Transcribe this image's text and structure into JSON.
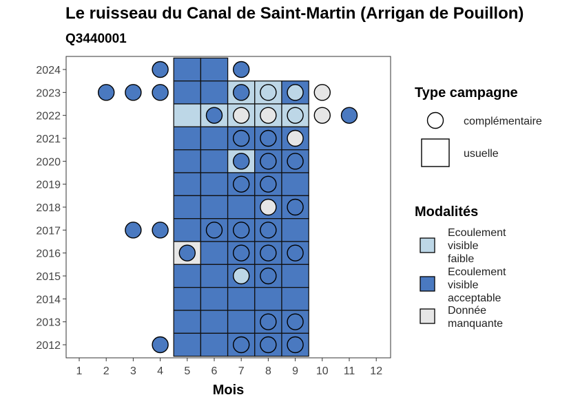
{
  "chart_data": {
    "type": "heatmap",
    "title": "Le ruisseau du Canal de Saint-Martin (Arrigan de Pouillon)",
    "subtitle": "Q3440001",
    "xlabel": "Mois",
    "ylabel": "",
    "x_ticks": [
      1,
      2,
      3,
      4,
      5,
      6,
      7,
      8,
      9,
      10,
      11,
      12
    ],
    "y_ticks": [
      2012,
      2013,
      2014,
      2015,
      2016,
      2017,
      2018,
      2019,
      2020,
      2021,
      2022,
      2023,
      2024
    ],
    "xlim": [
      0.5,
      12.5
    ],
    "ylim": [
      2011.5,
      2024.5
    ],
    "colors": {
      "Ecoulement visible faible": "#bdd7e7",
      "Ecoulement visible acceptable": "#4a79c0",
      "Donnée manquante": "#e6e6e6"
    },
    "usuelle": [
      {
        "year": 2024,
        "month": 5,
        "m": "acc"
      },
      {
        "year": 2024,
        "month": 6,
        "m": "acc"
      },
      {
        "year": 2023,
        "month": 5,
        "m": "acc"
      },
      {
        "year": 2023,
        "month": 6,
        "m": "acc"
      },
      {
        "year": 2023,
        "month": 7,
        "m": "faible"
      },
      {
        "year": 2023,
        "month": 8,
        "m": "faible"
      },
      {
        "year": 2023,
        "month": 9,
        "m": "acc"
      },
      {
        "year": 2022,
        "month": 5,
        "m": "faible"
      },
      {
        "year": 2022,
        "month": 6,
        "m": "faible"
      },
      {
        "year": 2022,
        "month": 7,
        "m": "faible"
      },
      {
        "year": 2022,
        "month": 8,
        "m": "faible"
      },
      {
        "year": 2022,
        "month": 9,
        "m": "faible"
      },
      {
        "year": 2021,
        "month": 5,
        "m": "acc"
      },
      {
        "year": 2021,
        "month": 6,
        "m": "acc"
      },
      {
        "year": 2021,
        "month": 7,
        "m": "acc"
      },
      {
        "year": 2021,
        "month": 8,
        "m": "acc"
      },
      {
        "year": 2021,
        "month": 9,
        "m": "acc"
      },
      {
        "year": 2020,
        "month": 5,
        "m": "acc"
      },
      {
        "year": 2020,
        "month": 6,
        "m": "acc"
      },
      {
        "year": 2020,
        "month": 7,
        "m": "faible"
      },
      {
        "year": 2020,
        "month": 8,
        "m": "acc"
      },
      {
        "year": 2020,
        "month": 9,
        "m": "acc"
      },
      {
        "year": 2019,
        "month": 5,
        "m": "acc"
      },
      {
        "year": 2019,
        "month": 6,
        "m": "acc"
      },
      {
        "year": 2019,
        "month": 7,
        "m": "acc"
      },
      {
        "year": 2019,
        "month": 8,
        "m": "acc"
      },
      {
        "year": 2019,
        "month": 9,
        "m": "acc"
      },
      {
        "year": 2018,
        "month": 5,
        "m": "acc"
      },
      {
        "year": 2018,
        "month": 6,
        "m": "acc"
      },
      {
        "year": 2018,
        "month": 7,
        "m": "acc"
      },
      {
        "year": 2018,
        "month": 8,
        "m": "acc"
      },
      {
        "year": 2018,
        "month": 9,
        "m": "acc"
      },
      {
        "year": 2017,
        "month": 5,
        "m": "acc"
      },
      {
        "year": 2017,
        "month": 6,
        "m": "acc"
      },
      {
        "year": 2017,
        "month": 7,
        "m": "acc"
      },
      {
        "year": 2017,
        "month": 8,
        "m": "acc"
      },
      {
        "year": 2017,
        "month": 9,
        "m": "acc"
      },
      {
        "year": 2016,
        "month": 5,
        "m": "nd"
      },
      {
        "year": 2016,
        "month": 6,
        "m": "acc"
      },
      {
        "year": 2016,
        "month": 7,
        "m": "acc"
      },
      {
        "year": 2016,
        "month": 8,
        "m": "acc"
      },
      {
        "year": 2016,
        "month": 9,
        "m": "acc"
      },
      {
        "year": 2015,
        "month": 5,
        "m": "acc"
      },
      {
        "year": 2015,
        "month": 6,
        "m": "acc"
      },
      {
        "year": 2015,
        "month": 7,
        "m": "acc"
      },
      {
        "year": 2015,
        "month": 8,
        "m": "acc"
      },
      {
        "year": 2015,
        "month": 9,
        "m": "acc"
      },
      {
        "year": 2014,
        "month": 5,
        "m": "acc"
      },
      {
        "year": 2014,
        "month": 6,
        "m": "acc"
      },
      {
        "year": 2014,
        "month": 7,
        "m": "acc"
      },
      {
        "year": 2014,
        "month": 8,
        "m": "acc"
      },
      {
        "year": 2014,
        "month": 9,
        "m": "acc"
      },
      {
        "year": 2013,
        "month": 5,
        "m": "acc"
      },
      {
        "year": 2013,
        "month": 6,
        "m": "acc"
      },
      {
        "year": 2013,
        "month": 7,
        "m": "acc"
      },
      {
        "year": 2013,
        "month": 8,
        "m": "acc"
      },
      {
        "year": 2013,
        "month": 9,
        "m": "acc"
      },
      {
        "year": 2012,
        "month": 5,
        "m": "acc"
      },
      {
        "year": 2012,
        "month": 6,
        "m": "acc"
      },
      {
        "year": 2012,
        "month": 7,
        "m": "acc"
      },
      {
        "year": 2012,
        "month": 8,
        "m": "acc"
      },
      {
        "year": 2012,
        "month": 9,
        "m": "acc"
      }
    ],
    "complementaire": [
      {
        "year": 2024,
        "month": 4,
        "m": "acc"
      },
      {
        "year": 2024,
        "month": 7,
        "m": "acc"
      },
      {
        "year": 2023,
        "month": 2,
        "m": "acc"
      },
      {
        "year": 2023,
        "month": 3,
        "m": "acc"
      },
      {
        "year": 2023,
        "month": 4,
        "m": "acc"
      },
      {
        "year": 2023,
        "month": 7,
        "m": "acc"
      },
      {
        "year": 2023,
        "month": 8,
        "m": "faible"
      },
      {
        "year": 2023,
        "month": 9,
        "m": "faible"
      },
      {
        "year": 2023,
        "month": 10,
        "m": "nd"
      },
      {
        "year": 2022,
        "month": 6,
        "m": "acc"
      },
      {
        "year": 2022,
        "month": 7,
        "m": "nd"
      },
      {
        "year": 2022,
        "month": 8,
        "m": "nd"
      },
      {
        "year": 2022,
        "month": 9,
        "m": "faible"
      },
      {
        "year": 2022,
        "month": 10,
        "m": "nd"
      },
      {
        "year": 2022,
        "month": 11,
        "m": "acc"
      },
      {
        "year": 2021,
        "month": 7,
        "m": "acc"
      },
      {
        "year": 2021,
        "month": 8,
        "m": "acc"
      },
      {
        "year": 2021,
        "month": 9,
        "m": "nd"
      },
      {
        "year": 2020,
        "month": 7,
        "m": "acc"
      },
      {
        "year": 2020,
        "month": 8,
        "m": "acc"
      },
      {
        "year": 2020,
        "month": 9,
        "m": "acc"
      },
      {
        "year": 2019,
        "month": 7,
        "m": "acc"
      },
      {
        "year": 2019,
        "month": 8,
        "m": "acc"
      },
      {
        "year": 2018,
        "month": 8,
        "m": "nd"
      },
      {
        "year": 2018,
        "month": 9,
        "m": "acc"
      },
      {
        "year": 2017,
        "month": 3,
        "m": "acc"
      },
      {
        "year": 2017,
        "month": 4,
        "m": "acc"
      },
      {
        "year": 2017,
        "month": 6,
        "m": "acc"
      },
      {
        "year": 2017,
        "month": 7,
        "m": "acc"
      },
      {
        "year": 2017,
        "month": 8,
        "m": "acc"
      },
      {
        "year": 2016,
        "month": 5,
        "m": "acc"
      },
      {
        "year": 2016,
        "month": 7,
        "m": "acc"
      },
      {
        "year": 2016,
        "month": 8,
        "m": "acc"
      },
      {
        "year": 2016,
        "month": 9,
        "m": "acc"
      },
      {
        "year": 2015,
        "month": 7,
        "m": "faible"
      },
      {
        "year": 2015,
        "month": 8,
        "m": "acc"
      },
      {
        "year": 2013,
        "month": 8,
        "m": "acc"
      },
      {
        "year": 2013,
        "month": 9,
        "m": "acc"
      },
      {
        "year": 2012,
        "month": 4,
        "m": "acc"
      },
      {
        "year": 2012,
        "month": 7,
        "m": "acc"
      },
      {
        "year": 2012,
        "month": 8,
        "m": "acc"
      },
      {
        "year": 2012,
        "month": 9,
        "m": "acc"
      }
    ]
  },
  "legend": {
    "type_title": "Type campagne",
    "type_items": [
      "complémentaire",
      "usuelle"
    ],
    "mod_title": "Modalités",
    "mod_items": [
      {
        "key": "faible",
        "lines": [
          "Ecoulement",
          "visible",
          "faible"
        ],
        "color": "#bdd7e7"
      },
      {
        "key": "acc",
        "lines": [
          "Ecoulement",
          "visible",
          "acceptable"
        ],
        "color": "#4a79c0"
      },
      {
        "key": "nd",
        "lines": [
          "Donnée",
          "manquante"
        ],
        "color": "#e6e6e6"
      }
    ]
  }
}
